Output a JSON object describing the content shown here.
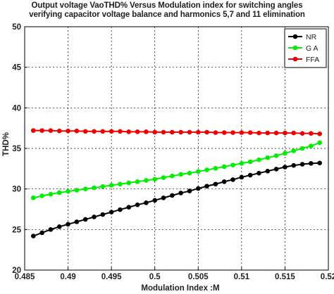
{
  "chart_data": {
    "type": "line",
    "title_lines": [
      "Output voltage VaoTHD% Versus Modulation index for switching angles",
      "verifying capacitor voltage balance  and harmonics 5,7 and 11 elimination"
    ],
    "xlabel": "Modulation Index :M",
    "ylabel": "THD%",
    "xlim": [
      0.485,
      0.52
    ],
    "ylim": [
      20,
      50
    ],
    "xticks": [
      "0.485",
      "0.49",
      "0.495",
      "0.5",
      "0.505",
      "0.51",
      "0.515",
      "0.52"
    ],
    "yticks": [
      "20",
      "25",
      "30",
      "35",
      "40",
      "45",
      "50"
    ],
    "grid": true,
    "legend_position": "top-right",
    "x": [
      0.486,
      0.487,
      0.488,
      0.489,
      0.49,
      0.491,
      0.492,
      0.493,
      0.494,
      0.495,
      0.496,
      0.497,
      0.498,
      0.499,
      0.5,
      0.501,
      0.502,
      0.503,
      0.504,
      0.505,
      0.506,
      0.507,
      0.508,
      0.509,
      0.51,
      0.511,
      0.512,
      0.513,
      0.514,
      0.515,
      0.516,
      0.517,
      0.518,
      0.519
    ],
    "series": [
      {
        "name": "NR",
        "color": "#000000",
        "values": [
          24.2,
          24.6,
          25.0,
          25.35,
          25.65,
          25.95,
          26.25,
          26.55,
          26.85,
          27.15,
          27.45,
          27.75,
          28.05,
          28.3,
          28.6,
          28.9,
          29.2,
          29.5,
          29.75,
          30.05,
          30.35,
          30.6,
          30.9,
          31.15,
          31.45,
          31.7,
          31.95,
          32.2,
          32.45,
          32.7,
          32.9,
          33.05,
          33.15,
          33.2
        ]
      },
      {
        "name": "G A",
        "color": "#00ee00",
        "values": [
          28.9,
          29.15,
          29.35,
          29.55,
          29.7,
          29.85,
          30.0,
          30.15,
          30.3,
          30.45,
          30.6,
          30.75,
          30.9,
          31.05,
          31.2,
          31.4,
          31.6,
          31.8,
          31.95,
          32.15,
          32.35,
          32.55,
          32.75,
          32.95,
          33.15,
          33.35,
          33.6,
          33.85,
          34.1,
          34.4,
          34.7,
          35.0,
          35.3,
          35.7
        ]
      },
      {
        "name": "FFA",
        "color": "#ee0000",
        "values": [
          37.2,
          37.2,
          37.2,
          37.15,
          37.15,
          37.15,
          37.1,
          37.1,
          37.1,
          37.1,
          37.1,
          37.05,
          37.05,
          37.05,
          37.0,
          37.0,
          37.0,
          37.0,
          37.0,
          37.0,
          37.0,
          36.95,
          36.95,
          36.95,
          36.95,
          36.95,
          36.9,
          36.9,
          36.9,
          36.9,
          36.9,
          36.85,
          36.85,
          36.8
        ]
      }
    ]
  }
}
